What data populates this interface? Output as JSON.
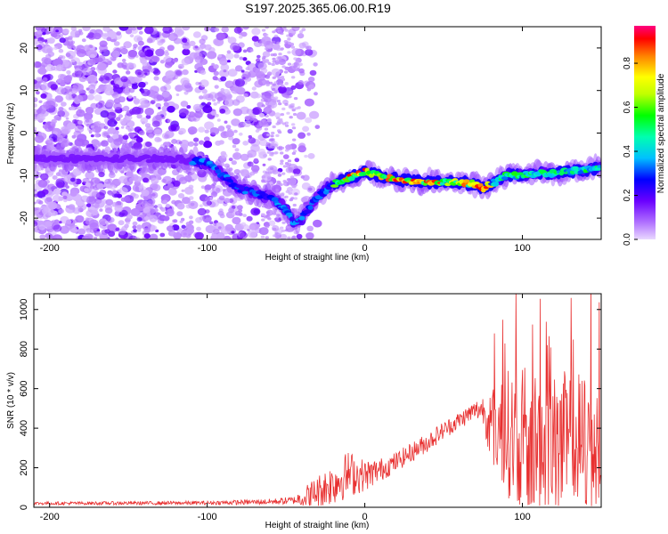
{
  "title": "S197.2025.365.06.00.R19",
  "chart_data": [
    {
      "type": "heatmap",
      "name": "spectrogram",
      "xlabel": "Height of straight line (km)",
      "ylabel": "Frequency (Hz)",
      "xlim": [
        -210,
        150
      ],
      "ylim": [
        -25,
        25
      ],
      "xticks": [
        -200,
        -100,
        0,
        100
      ],
      "yticks": [
        20,
        10,
        0,
        -10,
        -20
      ],
      "ridge": {
        "x": [
          -210,
          -150,
          -120,
          -100,
          -90,
          -80,
          -70,
          -60,
          -50,
          -45,
          -40,
          -30,
          -20,
          -10,
          0,
          10,
          20,
          40,
          60,
          70,
          75,
          80,
          90,
          100,
          110,
          120,
          130,
          140,
          150
        ],
        "y": [
          -6,
          -6,
          -6,
          -7,
          -10,
          -13,
          -14,
          -15,
          -18,
          -21,
          -20,
          -15,
          -12,
          -10.5,
          -9,
          -10,
          -11,
          -11.5,
          -11.5,
          -12,
          -13,
          -12,
          -10,
          -10,
          -9.5,
          -9.5,
          -9,
          -8.5,
          -8
        ]
      },
      "colorbar": {
        "label": "Normalized spectral amplitude",
        "ticks": [
          0.0,
          0.2,
          0.4,
          0.6,
          0.8
        ],
        "range": [
          0,
          0.97
        ]
      }
    },
    {
      "type": "line",
      "name": "snr",
      "xlabel": "Height of straight line (km)",
      "ylabel": "SNR (10 * v/v)",
      "xlim": [
        -210,
        150
      ],
      "ylim": [
        0,
        1080
      ],
      "xticks": [
        -200,
        -100,
        0,
        100
      ],
      "yticks": [
        0,
        200,
        400,
        600,
        800,
        1000
      ],
      "color": "#e83030",
      "envelope": {
        "x": [
          -210,
          -100,
          -80,
          -60,
          -45,
          -35,
          -20,
          -10,
          0,
          10,
          20,
          30,
          40,
          50,
          60,
          70,
          75,
          80,
          90,
          100,
          110,
          120,
          130,
          140,
          150
        ],
        "base": [
          20,
          22,
          25,
          28,
          35,
          60,
          120,
          170,
          160,
          190,
          230,
          280,
          330,
          390,
          440,
          490,
          500,
          420,
          380,
          330,
          320,
          300,
          320,
          310,
          330
        ],
        "spread": [
          8,
          10,
          12,
          15,
          20,
          70,
          110,
          120,
          80,
          60,
          50,
          50,
          50,
          45,
          45,
          50,
          70,
          200,
          320,
          380,
          380,
          380,
          380,
          380,
          380
        ]
      }
    }
  ]
}
